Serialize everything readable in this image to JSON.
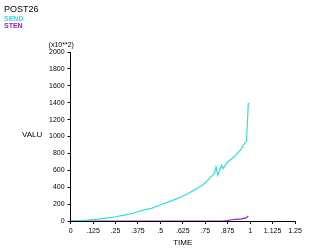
{
  "chart_data": {
    "type": "line",
    "title": "POST26",
    "x_label": "TIME",
    "y_label": "VALU",
    "annotation": "(x10**2)",
    "legend": "top-left",
    "grid": false,
    "x": [
      0,
      0.05,
      0.1,
      0.15,
      0.2,
      0.25,
      0.3,
      0.35,
      0.4,
      0.45,
      0.5,
      0.55,
      0.6,
      0.65,
      0.7,
      0.75,
      0.78,
      0.8,
      0.81,
      0.82,
      0.83,
      0.84,
      0.85,
      0.87,
      0.9,
      0.92,
      0.95,
      0.97,
      0.98,
      0.99
    ],
    "series": [
      {
        "name": "SEND",
        "color": "#33dede",
        "values": [
          0,
          5,
          12,
          22,
          35,
          50,
          70,
          95,
          125,
          150,
          190,
          230,
          270,
          320,
          380,
          450,
          520,
          560,
          640,
          540,
          600,
          660,
          620,
          690,
          740,
          780,
          850,
          920,
          950,
          1400
        ]
      },
      {
        "name": "STEN",
        "color": "#9a1fc8",
        "values": [
          0,
          0,
          0,
          0,
          0,
          0,
          0,
          0,
          0,
          0,
          0,
          0,
          0,
          0,
          0,
          0,
          0,
          0,
          0,
          0,
          0,
          0,
          0,
          5,
          15,
          20,
          25,
          35,
          40,
          60
        ]
      }
    ],
    "xlim": [
      0,
      1.25
    ],
    "xticks": [
      0,
      {
        "value": 0.125,
        "label": ".125"
      },
      {
        "value": 0.25,
        "label": ".25"
      },
      {
        "value": 0.375,
        "label": ".375"
      },
      {
        "value": 0.5,
        "label": ".5"
      },
      {
        "value": 0.625,
        "label": ".625"
      },
      {
        "value": 0.75,
        "label": ".75"
      },
      {
        "value": 0.875,
        "label": ".875"
      },
      1,
      {
        "value": 1.125,
        "label": "1.125"
      },
      {
        "value": 1.25,
        "label": "1.25"
      }
    ],
    "ylim": [
      0,
      2000
    ],
    "yticks": [
      0,
      200,
      400,
      600,
      800,
      1000,
      1200,
      1400,
      1600,
      1800,
      2000
    ]
  }
}
